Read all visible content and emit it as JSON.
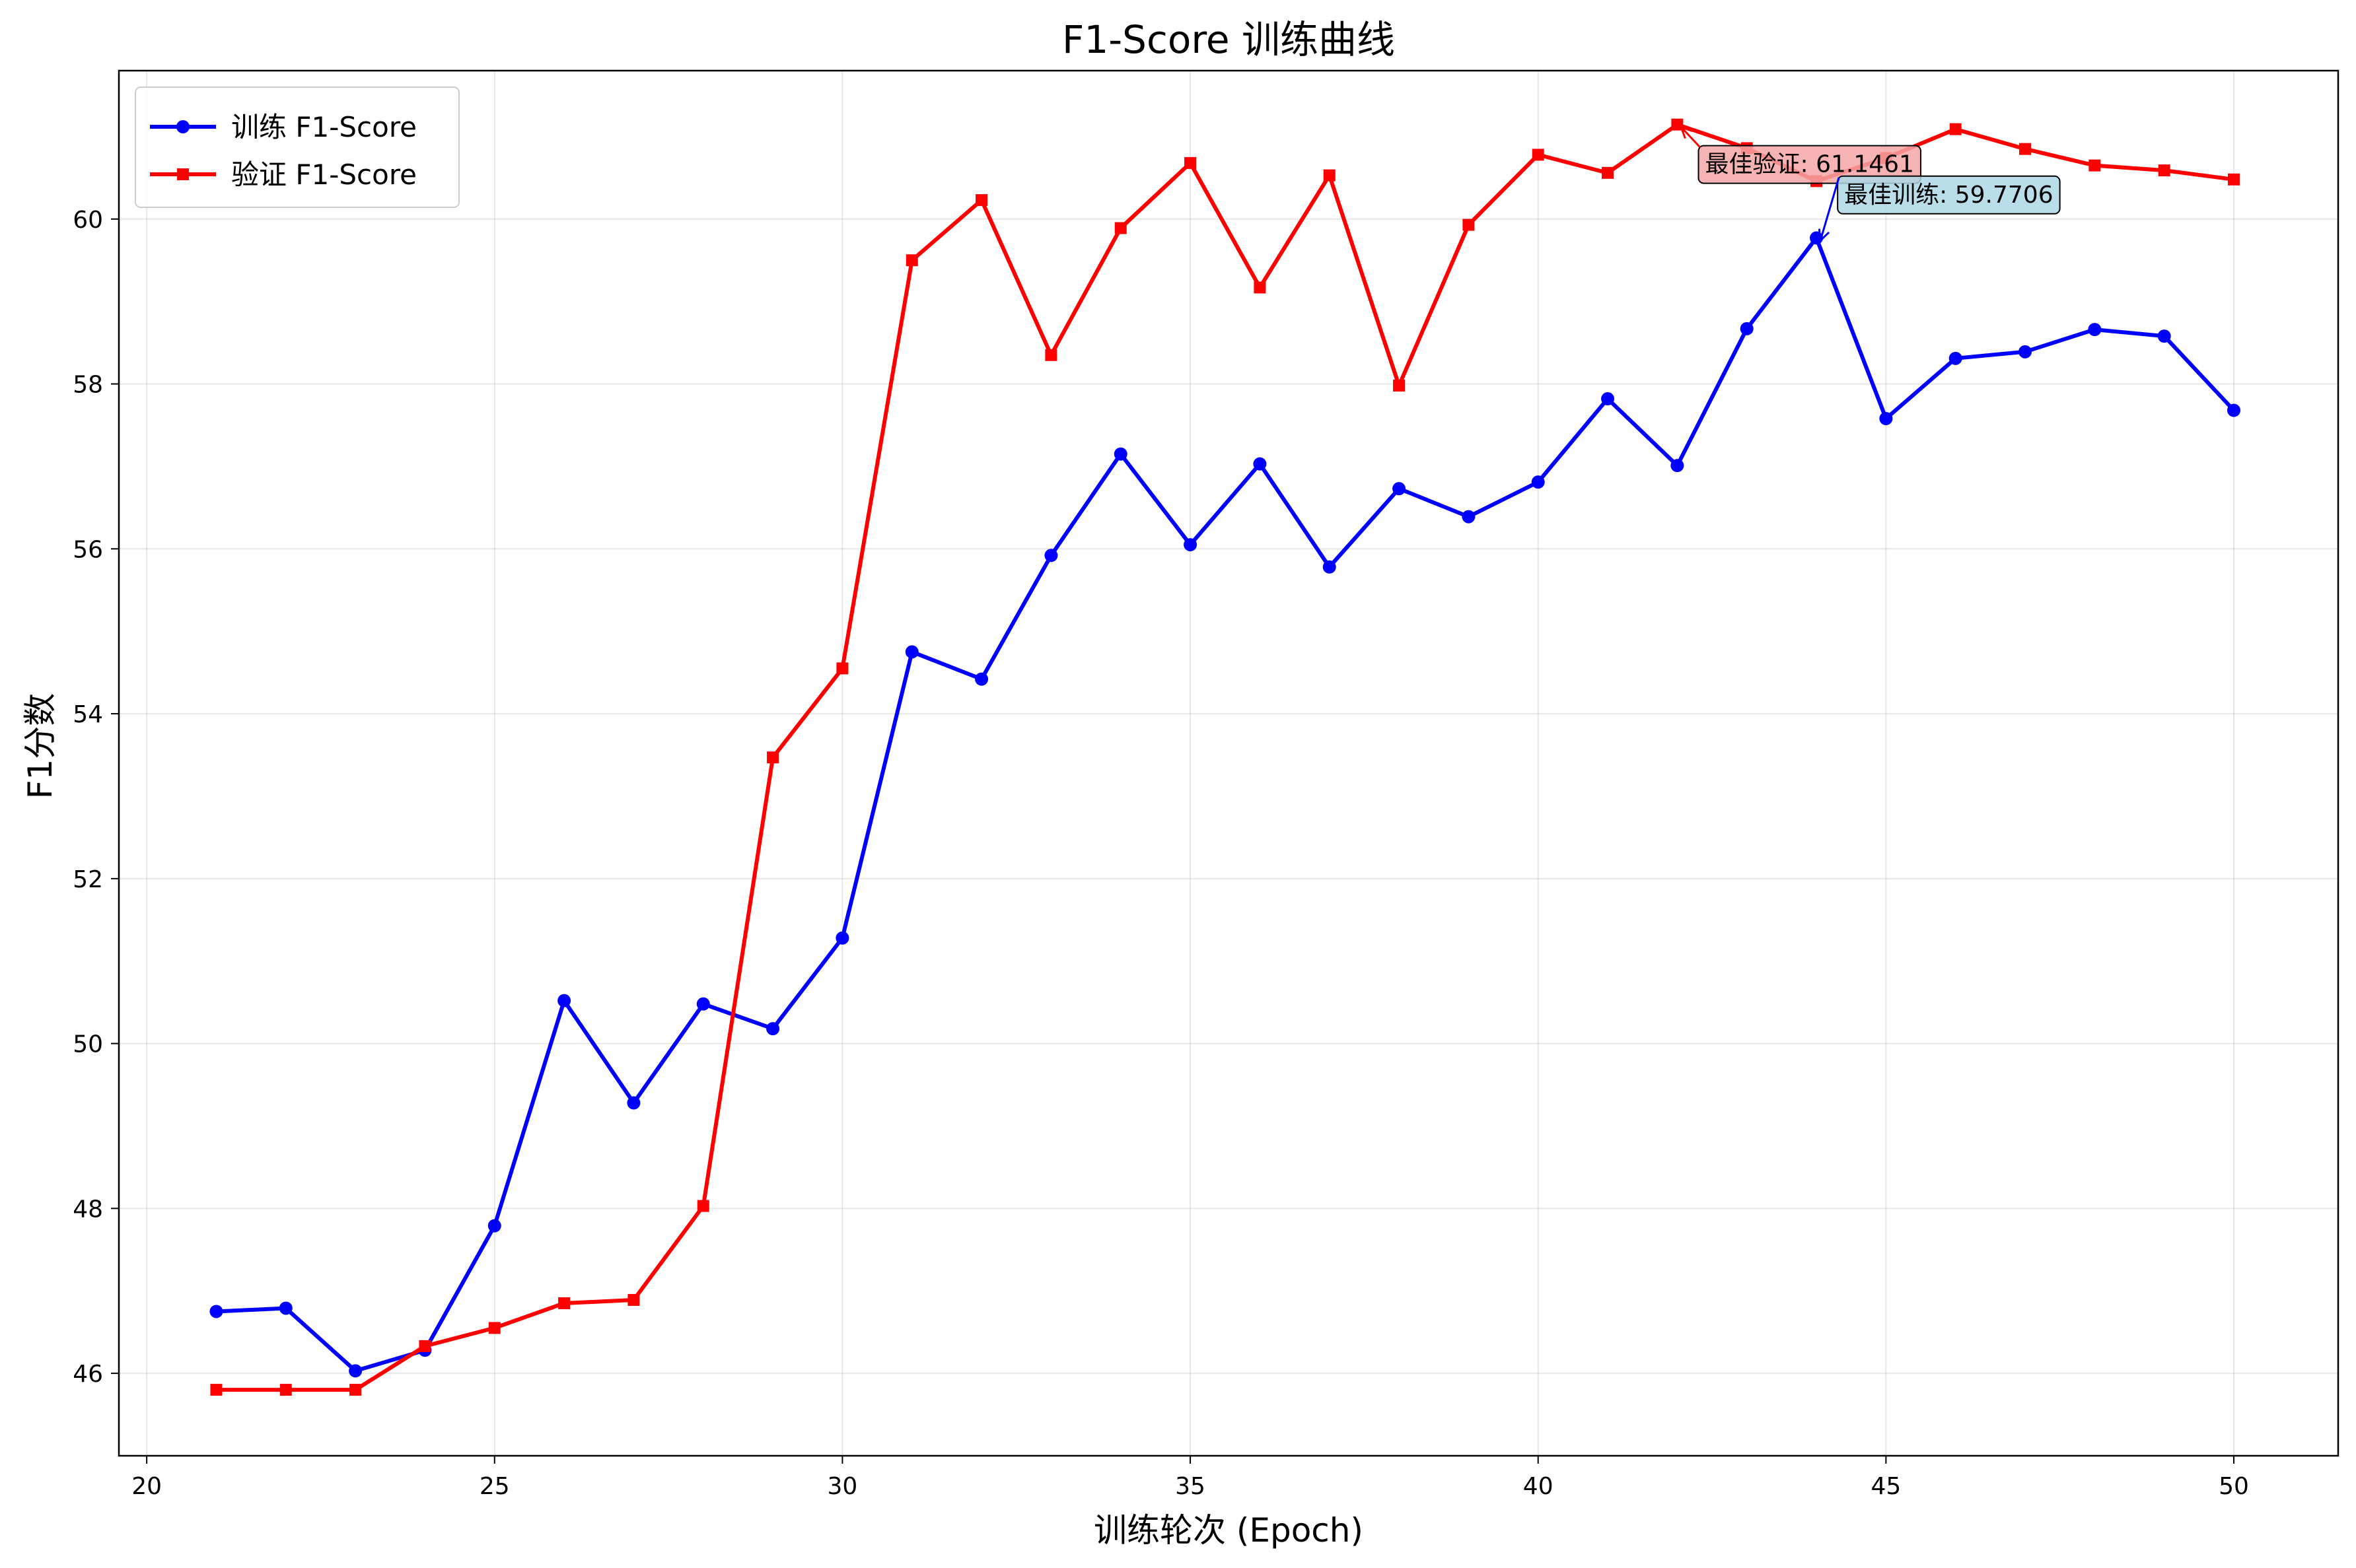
{
  "chart_data": {
    "type": "line",
    "title": "F1-Score 训练曲线",
    "xlabel": "训练轮次 (Epoch)",
    "ylabel": "F1分数",
    "xlim": [
      19.6,
      51.5
    ],
    "ylim": [
      45.0,
      61.8
    ],
    "x_ticks": [
      20,
      25,
      30,
      35,
      40,
      45,
      50
    ],
    "y_ticks": [
      46,
      48,
      50,
      52,
      54,
      56,
      58,
      60
    ],
    "grid": true,
    "legend_position": "top-left",
    "x": [
      21,
      22,
      23,
      24,
      25,
      26,
      27,
      28,
      29,
      30,
      31,
      32,
      33,
      34,
      35,
      36,
      37,
      38,
      39,
      40,
      41,
      42,
      43,
      44,
      45,
      46,
      47,
      48,
      49,
      50
    ],
    "series": [
      {
        "name": "训练 F1-Score",
        "color": "#0000ff",
        "marker": "circle",
        "values": [
          46.75,
          46.79,
          46.03,
          46.28,
          47.79,
          50.52,
          49.28,
          50.48,
          50.18,
          51.28,
          54.75,
          54.42,
          55.92,
          57.15,
          56.05,
          57.03,
          55.78,
          56.73,
          56.39,
          56.81,
          57.82,
          57.01,
          58.67,
          59.7706,
          57.58,
          58.31,
          58.39,
          58.66,
          58.58,
          57.68
        ]
      },
      {
        "name": "验证 F1-Score",
        "color": "#ff0000",
        "marker": "square",
        "values": [
          45.8,
          45.8,
          45.8,
          46.33,
          46.55,
          46.85,
          46.89,
          48.03,
          53.47,
          54.55,
          59.5,
          60.23,
          58.35,
          59.89,
          60.68,
          59.17,
          60.53,
          57.98,
          59.93,
          60.78,
          60.56,
          61.1461,
          60.86,
          60.46,
          60.74,
          61.09,
          60.85,
          60.65,
          60.59,
          60.48
        ]
      }
    ],
    "annotations": [
      {
        "text": "最佳验证: 61.1461",
        "x": 42,
        "y": 61.1461,
        "text_x": 42.4,
        "text_y": 60.57,
        "box_color": "#f4a6a6"
      },
      {
        "text": "最佳训练: 59.7706",
        "x": 44,
        "y": 59.7706,
        "text_x": 44.4,
        "text_y": 60.2,
        "box_color": "#add8e6"
      }
    ]
  }
}
